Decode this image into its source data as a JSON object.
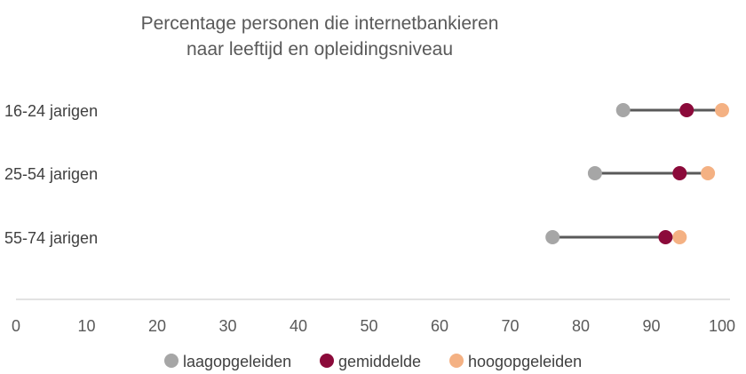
{
  "chart_data": {
    "type": "dumbbell",
    "title": [
      "Percentage personen die internetbankieren",
      "naar leeftijd en opleidingsniveau"
    ],
    "categories": [
      "16-24 jarigen",
      "25-54 jarigen",
      "55-74 jarigen"
    ],
    "series": [
      {
        "name": "laagopgeleiden",
        "color": "#a6a6a6",
        "values": [
          86,
          82,
          76
        ]
      },
      {
        "name": "gemiddelde",
        "color": "#8b0a3a",
        "values": [
          95,
          94,
          92
        ]
      },
      {
        "name": "hoogopgeleiden",
        "color": "#f4b183",
        "values": [
          100,
          98,
          94
        ]
      }
    ],
    "xlim": [
      0,
      100
    ],
    "xticks": [
      "0",
      "10",
      "20",
      "30",
      "40",
      "50",
      "60",
      "70",
      "80",
      "90",
      "100"
    ],
    "connector_color": "#595959",
    "grid": false,
    "legend_position": "bottom"
  }
}
